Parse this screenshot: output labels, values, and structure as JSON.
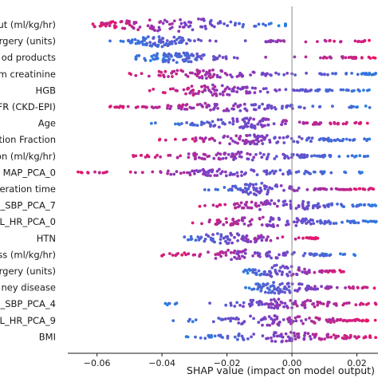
{
  "chart_data": {
    "type": "scatter",
    "subtype": "shap-beeswarm",
    "xlabel": "SHAP value (impact on model output)",
    "xlim": [
      -0.069,
      0.026
    ],
    "x_ticks": [
      -0.06,
      -0.04,
      -0.02,
      0.0,
      0.02
    ],
    "x_tick_labels": [
      "−0.06",
      "−0.04",
      "−0.02",
      "0.00",
      "0.02"
    ],
    "zero_line": 0.0,
    "feature_labels": [
      "ut (ml/kg/hr)",
      "rgery (units)",
      "od products",
      "m creatinine",
      "HGB",
      "FR (CKD-EPI)",
      "Age",
      "ction Fraction",
      "on (ml/kg/hr)",
      "MAP_PCA_0",
      "eration time",
      "_SBP_PCA_7",
      "L_HR_PCA_0",
      "HTN",
      "ss (ml/kg/hr)",
      "rgery (units)",
      "ney disease",
      "_SBP_PCA_4",
      "L_HR_PCA_9",
      "BMI"
    ],
    "feature_value_colors": {
      "low": "#1e88e5",
      "mid": "#7c3fc4",
      "high": "#ff0d57"
    },
    "features": [
      {
        "center": -0.036,
        "spread": 0.014,
        "min": -0.062,
        "max": -0.002,
        "extra": [
          [
            0.008,
            0.018
          ],
          [
            -0.06,
            -0.054
          ]
        ],
        "dense": 1.0,
        "high": "left",
        "n": 130
      },
      {
        "center": -0.04,
        "spread": 0.006,
        "min": -0.056,
        "max": 0.026,
        "extra": [
          [
            0.01,
            0.026
          ],
          [
            -0.012,
            -0.002
          ]
        ],
        "dense": 0.8,
        "high": "right",
        "n": 110
      },
      {
        "center": -0.036,
        "spread": 0.008,
        "min": -0.048,
        "max": 0.026,
        "extra": [
          [
            0.01,
            0.026
          ]
        ],
        "dense": 0.7,
        "high": "right",
        "n": 120
      },
      {
        "center": -0.028,
        "spread": 0.012,
        "min": -0.05,
        "max": 0.026,
        "extra": [
          [
            0.0,
            0.026
          ]
        ],
        "dense": 0.6,
        "high": "left",
        "n": 115
      },
      {
        "center": -0.024,
        "spread": 0.01,
        "min": -0.046,
        "max": 0.024,
        "extra": [
          [
            0.002,
            0.024
          ]
        ],
        "dense": 0.8,
        "high": "left",
        "n": 120
      },
      {
        "center": -0.018,
        "spread": 0.012,
        "min": -0.058,
        "max": 0.024,
        "extra": [
          [
            0.004,
            0.024
          ],
          [
            -0.058,
            -0.04
          ]
        ],
        "dense": 0.6,
        "high": "left",
        "n": 120
      },
      {
        "center": -0.014,
        "spread": 0.01,
        "min": -0.044,
        "max": 0.024,
        "extra": [
          [
            0.006,
            0.024
          ]
        ],
        "dense": 0.8,
        "high": "right",
        "n": 120
      },
      {
        "center": -0.012,
        "spread": 0.012,
        "min": -0.044,
        "max": 0.024,
        "extra": [
          [
            0.004,
            0.024
          ]
        ],
        "dense": 0.7,
        "high": "left",
        "n": 120
      },
      {
        "center": -0.018,
        "spread": 0.012,
        "min": -0.05,
        "max": 0.024,
        "extra": [
          [
            0.002,
            0.024
          ]
        ],
        "dense": 0.6,
        "high": "left",
        "n": 120
      },
      {
        "center": -0.018,
        "spread": 0.014,
        "min": -0.066,
        "max": 0.022,
        "extra": [
          [
            -0.066,
            -0.056
          ],
          [
            0.004,
            0.022
          ]
        ],
        "dense": 0.5,
        "high": "left",
        "n": 110
      },
      {
        "center": -0.01,
        "spread": 0.006,
        "min": -0.03,
        "max": 0.026,
        "extra": [
          [
            0.008,
            0.026
          ]
        ],
        "dense": 0.9,
        "high": "right",
        "n": 105
      },
      {
        "center": -0.004,
        "spread": 0.01,
        "min": -0.032,
        "max": 0.026,
        "extra": [
          [
            0.004,
            0.026
          ]
        ],
        "dense": 0.7,
        "high": "left",
        "n": 110
      },
      {
        "center": -0.008,
        "spread": 0.012,
        "min": -0.034,
        "max": 0.026,
        "extra": [
          [
            0.004,
            0.026
          ]
        ],
        "dense": 0.7,
        "high": "left",
        "n": 115
      },
      {
        "center": -0.018,
        "spread": 0.008,
        "min": -0.036,
        "max": 0.008,
        "extra": [
          [
            0.004,
            0.008
          ]
        ],
        "dense": 0.8,
        "high": "right",
        "n": 90
      },
      {
        "center": -0.016,
        "spread": 0.012,
        "min": -0.04,
        "max": 0.02,
        "extra": [
          [
            0.004,
            0.02
          ]
        ],
        "dense": 0.7,
        "high": "left",
        "n": 105
      },
      {
        "center": -0.004,
        "spread": 0.006,
        "min": -0.016,
        "max": 0.016,
        "extra": [
          [
            0.008,
            0.016
          ]
        ],
        "dense": 0.9,
        "high": "right",
        "n": 80
      },
      {
        "center": -0.004,
        "spread": 0.006,
        "min": -0.016,
        "max": 0.026,
        "extra": [
          [
            0.004,
            0.026
          ]
        ],
        "dense": 0.9,
        "high": "right",
        "n": 100
      },
      {
        "center": -0.004,
        "spread": 0.01,
        "min": -0.04,
        "max": 0.026,
        "extra": [
          [
            0.006,
            0.026
          ]
        ],
        "dense": 0.7,
        "high": "right",
        "n": 110
      },
      {
        "center": -0.006,
        "spread": 0.012,
        "min": -0.04,
        "max": 0.026,
        "extra": [
          [
            0.006,
            0.026
          ]
        ],
        "dense": 0.7,
        "high": "right",
        "n": 110
      },
      {
        "center": -0.004,
        "spread": 0.012,
        "min": -0.034,
        "max": 0.026,
        "extra": [
          [
            0.004,
            0.026
          ]
        ],
        "dense": 0.7,
        "high": "right",
        "n": 110
      }
    ]
  }
}
